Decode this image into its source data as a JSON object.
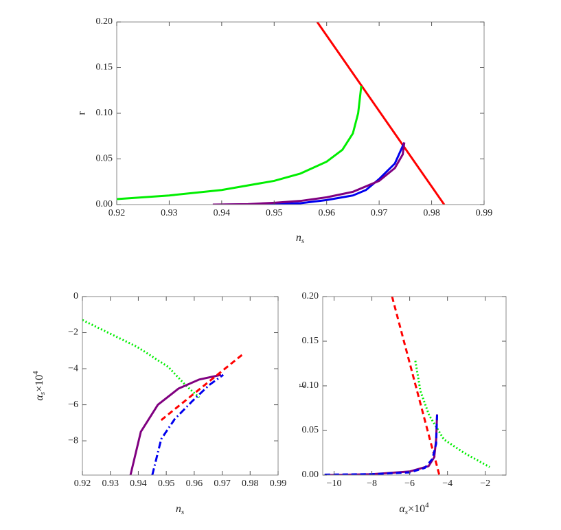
{
  "chart_data": [
    {
      "type": "line",
      "xlabel": {
        "text": "n",
        "subscript": "s"
      },
      "ylabel": "r",
      "xlim": [
        0.92,
        0.99
      ],
      "ylim": [
        0,
        0.2
      ],
      "xticks": [
        0.92,
        0.93,
        0.94,
        0.95,
        0.96,
        0.97,
        0.98,
        0.99
      ],
      "yticks": [
        {
          "value": 0,
          "label": "0.00"
        },
        0.05,
        {
          "value": 0.1,
          "label": "0.10"
        },
        0.15,
        {
          "value": 0.2,
          "label": "0.20"
        }
      ],
      "series": [
        {
          "color": "#ff0000",
          "dash": "solid",
          "x": [
            0.9582,
            0.9824
          ],
          "values": [
            0.2,
            0
          ]
        },
        {
          "color": "#00ee00",
          "dash": "solid",
          "x": [
            0.92,
            0.93,
            0.94,
            0.95,
            0.955,
            0.96,
            0.963,
            0.965,
            0.966,
            0.9666
          ],
          "values": [
            0.006,
            0.01,
            0.016,
            0.026,
            0.034,
            0.047,
            0.06,
            0.078,
            0.1,
            0.13
          ]
        },
        {
          "color": "#0000ee",
          "dash": "solid",
          "x": [
            0.94,
            0.95,
            0.955,
            0.96,
            0.965,
            0.9675,
            0.97,
            0.973,
            0.9748
          ],
          "values": [
            0,
            0.0005,
            0.0015,
            0.005,
            0.01,
            0.016,
            0.028,
            0.045,
            0.068
          ]
        },
        {
          "color": "#800080",
          "dash": "solid",
          "x": [
            0.9383,
            0.945,
            0.95,
            0.955,
            0.96,
            0.965,
            0.97,
            0.973,
            0.9745,
            0.9748
          ],
          "values": [
            0,
            0.0005,
            0.002,
            0.004,
            0.008,
            0.014,
            0.026,
            0.04,
            0.055,
            0.068
          ]
        }
      ]
    },
    {
      "type": "line",
      "xlabel": {
        "text": "n",
        "subscript": "s"
      },
      "ylabel": {
        "text": "α",
        "subscript": "s",
        "rest": "×10",
        "superscript": "4"
      },
      "xlim": [
        0.92,
        0.99
      ],
      "ylim": [
        -9.9,
        0
      ],
      "xticks": [
        0.92,
        0.93,
        0.94,
        0.95,
        0.96,
        0.97,
        0.98,
        0.99
      ],
      "yticks": [
        0,
        {
          "value": -2,
          "label": "−2"
        },
        {
          "value": -4,
          "label": "−4"
        },
        {
          "value": -6,
          "label": "−6"
        },
        {
          "value": -8,
          "label": "−8"
        }
      ],
      "series": [
        {
          "color": "#00ee00",
          "dash": "dotted",
          "x": [
            0.92,
            0.9397,
            0.9507,
            0.9568,
            0.9618
          ],
          "values": [
            -1.3,
            -2.8,
            -3.9,
            -4.9,
            -5.6
          ]
        },
        {
          "color": "#800080",
          "dash": "solid",
          "x": [
            0.9372,
            0.9409,
            0.947,
            0.9544,
            0.9618,
            0.9696
          ],
          "values": [
            -9.9,
            -7.5,
            -6.0,
            -5.1,
            -4.6,
            -4.34
          ]
        },
        {
          "color": "#0000ee",
          "dash": "dashdot",
          "x": [
            0.945,
            0.9482,
            0.953,
            0.9593,
            0.9654,
            0.9704
          ],
          "values": [
            -9.9,
            -7.9,
            -6.8,
            -5.8,
            -4.9,
            -4.34
          ]
        },
        {
          "color": "#ff0000",
          "dash": "dashed",
          "x": [
            0.9482,
            0.9777
          ],
          "values": [
            -6.85,
            -3.16
          ]
        }
      ]
    },
    {
      "type": "line",
      "xlabel": {
        "text": "α",
        "subscript": "s",
        "rest": "×10",
        "superscript": "4"
      },
      "ylabel": "r",
      "xlim": [
        -10.6,
        -0.9
      ],
      "ylim": [
        0,
        0.2
      ],
      "xticks": [
        {
          "value": -10,
          "label": "−10"
        },
        {
          "value": -8,
          "label": "−8"
        },
        {
          "value": -6,
          "label": "−6"
        },
        {
          "value": -4,
          "label": "−4"
        },
        {
          "value": -2,
          "label": "−2"
        }
      ],
      "yticks": [
        {
          "value": 0,
          "label": "0.00"
        },
        0.05,
        {
          "value": 0.1,
          "label": "0.10"
        },
        0.15,
        {
          "value": 0.2,
          "label": "0.20"
        }
      ],
      "series": [
        {
          "color": "#ff0000",
          "dash": "dashed",
          "x": [
            -6.93,
            -4.43
          ],
          "values": [
            0.2,
            0
          ]
        },
        {
          "color": "#00ee00",
          "dash": "dotted",
          "x": [
            -5.7,
            -5.43,
            -4.97,
            -4.19,
            -3.13,
            -1.77
          ],
          "values": [
            0.128,
            0.094,
            0.067,
            0.04,
            0.025,
            0.009
          ]
        },
        {
          "color": "#800080",
          "dash": "solid",
          "x": [
            -10.5,
            -8,
            -6,
            -5,
            -4.7,
            -4.6,
            -4.55
          ],
          "values": [
            0,
            0.001,
            0.004,
            0.01,
            0.02,
            0.04,
            0.068
          ]
        },
        {
          "color": "#0000ee",
          "dash": "dashed",
          "x": [
            -10.5,
            -8,
            -6,
            -5.2,
            -4.8,
            -4.6,
            -4.55
          ],
          "values": [
            0.0005,
            0.001,
            0.003,
            0.008,
            0.018,
            0.035,
            0.068
          ]
        }
      ]
    }
  ]
}
